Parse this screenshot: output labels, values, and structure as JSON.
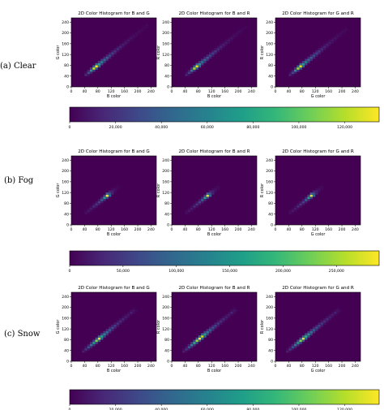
{
  "row_labels": [
    "(a) Clear",
    "(b) Fog",
    "(c) Snow"
  ],
  "colormap": [
    "#440154",
    "#482878",
    "#3e4989",
    "#31688e",
    "#26828e",
    "#1f9e89",
    "#35b779",
    "#6ece58",
    "#b5de2b",
    "#fde725"
  ],
  "background_color": "#440154",
  "chart_data": [
    {
      "type": "heatmap",
      "row": "(a) Clear",
      "title": "2D Color Histogram for B and G",
      "xlabel": "B color",
      "ylabel": "G color",
      "xlim": [
        0,
        256
      ],
      "ylim": [
        0,
        256
      ],
      "xticks": [
        0,
        40,
        80,
        120,
        160,
        200,
        240
      ],
      "yticks": [
        0,
        40,
        80,
        120,
        160,
        200,
        240
      ],
      "bin_size": 8,
      "diagonal_cells": [
        [
          40,
          0.12
        ],
        [
          48,
          0.25
        ],
        [
          56,
          0.55
        ],
        [
          64,
          0.9
        ],
        [
          72,
          1.0
        ],
        [
          80,
          0.55
        ],
        [
          88,
          0.45
        ],
        [
          96,
          0.35
        ],
        [
          104,
          0.3
        ],
        [
          112,
          0.22
        ],
        [
          120,
          0.18
        ],
        [
          128,
          0.14
        ],
        [
          136,
          0.12
        ],
        [
          144,
          0.1
        ],
        [
          152,
          0.08
        ],
        [
          160,
          0.07
        ],
        [
          168,
          0.06
        ],
        [
          176,
          0.05
        ],
        [
          184,
          0.04
        ],
        [
          192,
          0.03
        ],
        [
          200,
          0.03
        ],
        [
          208,
          0.02
        ],
        [
          216,
          0.02
        ],
        [
          224,
          0.02
        ]
      ]
    },
    {
      "type": "heatmap",
      "row": "(a) Clear",
      "title": "2D Color Histogram for B and R",
      "xlabel": "B color",
      "ylabel": "R color",
      "xlim": [
        0,
        256
      ],
      "ylim": [
        0,
        256
      ],
      "xticks": [
        0,
        40,
        80,
        120,
        160,
        200,
        240
      ],
      "yticks": [
        0,
        40,
        80,
        120,
        160,
        200,
        240
      ],
      "bin_size": 8,
      "diagonal_cells": [
        [
          40,
          0.1
        ],
        [
          48,
          0.2
        ],
        [
          56,
          0.45
        ],
        [
          64,
          0.85
        ],
        [
          72,
          0.95
        ],
        [
          80,
          0.5
        ],
        [
          88,
          0.4
        ],
        [
          96,
          0.32
        ],
        [
          104,
          0.28
        ],
        [
          112,
          0.22
        ],
        [
          120,
          0.18
        ],
        [
          128,
          0.15
        ],
        [
          136,
          0.12
        ],
        [
          144,
          0.1
        ],
        [
          152,
          0.08
        ],
        [
          160,
          0.07
        ],
        [
          168,
          0.06
        ],
        [
          176,
          0.05
        ],
        [
          184,
          0.04
        ],
        [
          192,
          0.03
        ],
        [
          200,
          0.03
        ],
        [
          208,
          0.02
        ],
        [
          216,
          0.02
        ]
      ]
    },
    {
      "type": "heatmap",
      "row": "(a) Clear",
      "title": "2D Color Histogram for G and R",
      "xlabel": "G color",
      "ylabel": "R color",
      "xlim": [
        0,
        256
      ],
      "ylim": [
        0,
        256
      ],
      "xticks": [
        0,
        40,
        80,
        120,
        160,
        200,
        240
      ],
      "yticks": [
        0,
        40,
        80,
        120,
        160,
        200,
        240
      ],
      "bin_size": 8,
      "diagonal_cells": [
        [
          40,
          0.1
        ],
        [
          48,
          0.22
        ],
        [
          56,
          0.5
        ],
        [
          64,
          0.85
        ],
        [
          72,
          0.95
        ],
        [
          80,
          0.55
        ],
        [
          88,
          0.45
        ],
        [
          96,
          0.35
        ],
        [
          104,
          0.3
        ],
        [
          112,
          0.25
        ],
        [
          120,
          0.2
        ],
        [
          128,
          0.16
        ],
        [
          136,
          0.12
        ],
        [
          144,
          0.1
        ],
        [
          152,
          0.08
        ],
        [
          160,
          0.07
        ],
        [
          168,
          0.06
        ],
        [
          176,
          0.05
        ],
        [
          184,
          0.04
        ],
        [
          192,
          0.03
        ],
        [
          200,
          0.03
        ],
        [
          208,
          0.02
        ]
      ]
    },
    {
      "type": "colorbar",
      "row": "(a) Clear",
      "range": [
        0,
        135000
      ],
      "ticks": [
        0,
        20000,
        40000,
        60000,
        80000,
        100000,
        120000
      ],
      "tick_labels": [
        "0",
        "20,000",
        "40,000",
        "60,000",
        "80,000",
        "100,000",
        "120,000"
      ]
    },
    {
      "type": "heatmap",
      "row": "(b) Fog",
      "title": "2D Color Histogram for B and G",
      "xlabel": "B color",
      "ylabel": "G color",
      "xlim": [
        0,
        256
      ],
      "ylim": [
        0,
        256
      ],
      "xticks": [
        0,
        40,
        80,
        120,
        160,
        200,
        240
      ],
      "yticks": [
        0,
        40,
        80,
        120,
        160,
        200,
        240
      ],
      "bin_size": 8,
      "diagonal_cells": [
        [
          40,
          0.04
        ],
        [
          48,
          0.06
        ],
        [
          56,
          0.08
        ],
        [
          64,
          0.12
        ],
        [
          72,
          0.15
        ],
        [
          80,
          0.2
        ],
        [
          88,
          0.3
        ],
        [
          96,
          0.55
        ],
        [
          104,
          1.0
        ],
        [
          112,
          0.25
        ],
        [
          120,
          0.08
        ],
        [
          128,
          0.04
        ],
        [
          136,
          0.02
        ]
      ]
    },
    {
      "type": "heatmap",
      "row": "(b) Fog",
      "title": "2D Color Histogram for B and R",
      "xlabel": "B color",
      "ylabel": "R color",
      "xlim": [
        0,
        256
      ],
      "ylim": [
        0,
        256
      ],
      "xticks": [
        0,
        40,
        80,
        120,
        160,
        200,
        240
      ],
      "yticks": [
        0,
        40,
        80,
        120,
        160,
        200,
        240
      ],
      "bin_size": 8,
      "diagonal_cells": [
        [
          40,
          0.04
        ],
        [
          48,
          0.06
        ],
        [
          56,
          0.08
        ],
        [
          64,
          0.12
        ],
        [
          72,
          0.15
        ],
        [
          80,
          0.2
        ],
        [
          88,
          0.3
        ],
        [
          96,
          0.55
        ],
        [
          104,
          0.95
        ],
        [
          112,
          0.25
        ],
        [
          120,
          0.08
        ],
        [
          128,
          0.04
        ],
        [
          136,
          0.02
        ]
      ]
    },
    {
      "type": "heatmap",
      "row": "(b) Fog",
      "title": "2D Color Histogram for G and R",
      "xlabel": "G color",
      "ylabel": "R color",
      "xlim": [
        0,
        256
      ],
      "ylim": [
        0,
        256
      ],
      "xticks": [
        0,
        40,
        80,
        120,
        160,
        200,
        240
      ],
      "yticks": [
        0,
        40,
        80,
        120,
        160,
        200,
        240
      ],
      "bin_size": 8,
      "diagonal_cells": [
        [
          40,
          0.04
        ],
        [
          48,
          0.06
        ],
        [
          56,
          0.08
        ],
        [
          64,
          0.12
        ],
        [
          72,
          0.15
        ],
        [
          80,
          0.2
        ],
        [
          88,
          0.3
        ],
        [
          96,
          0.55
        ],
        [
          104,
          0.95
        ],
        [
          112,
          0.25
        ],
        [
          120,
          0.08
        ],
        [
          128,
          0.04
        ],
        [
          136,
          0.02
        ]
      ]
    },
    {
      "type": "colorbar",
      "row": "(b) Fog",
      "range": [
        0,
        290000
      ],
      "ticks": [
        0,
        50000,
        100000,
        150000,
        200000,
        250000
      ],
      "tick_labels": [
        "0",
        "50,000",
        "100,000",
        "150,000",
        "200,000",
        "250,000"
      ]
    },
    {
      "type": "heatmap",
      "row": "(c) Snow",
      "title": "2D Color Histogram for B and G",
      "xlabel": "B color",
      "ylabel": "G color",
      "xlim": [
        0,
        256
      ],
      "ylim": [
        0,
        256
      ],
      "xticks": [
        0,
        40,
        80,
        120,
        160,
        200,
        240
      ],
      "yticks": [
        0,
        40,
        80,
        120,
        160,
        200,
        240
      ],
      "bin_size": 8,
      "diagonal_cells": [
        [
          32,
          0.08
        ],
        [
          40,
          0.15
        ],
        [
          48,
          0.25
        ],
        [
          56,
          0.4
        ],
        [
          64,
          0.55
        ],
        [
          72,
          0.8
        ],
        [
          80,
          0.95
        ],
        [
          88,
          0.6
        ],
        [
          96,
          0.45
        ],
        [
          104,
          0.35
        ],
        [
          112,
          0.28
        ],
        [
          120,
          0.22
        ],
        [
          128,
          0.18
        ],
        [
          136,
          0.14
        ],
        [
          144,
          0.12
        ],
        [
          152,
          0.1
        ],
        [
          160,
          0.08
        ],
        [
          168,
          0.06
        ],
        [
          176,
          0.08
        ],
        [
          184,
          0.05
        ]
      ]
    },
    {
      "type": "heatmap",
      "row": "(c) Snow",
      "title": "2D Color Histogram for B and R",
      "xlabel": "B color",
      "ylabel": "R color",
      "xlim": [
        0,
        256
      ],
      "ylim": [
        0,
        256
      ],
      "xticks": [
        0,
        40,
        80,
        120,
        160,
        200,
        240
      ],
      "yticks": [
        0,
        40,
        80,
        120,
        160,
        200,
        240
      ],
      "bin_size": 8,
      "diagonal_cells": [
        [
          32,
          0.08
        ],
        [
          40,
          0.15
        ],
        [
          48,
          0.28
        ],
        [
          56,
          0.45
        ],
        [
          64,
          0.6
        ],
        [
          72,
          0.85
        ],
        [
          80,
          1.0
        ],
        [
          88,
          0.9
        ],
        [
          96,
          0.55
        ],
        [
          104,
          0.4
        ],
        [
          112,
          0.3
        ],
        [
          120,
          0.24
        ],
        [
          128,
          0.2
        ],
        [
          136,
          0.16
        ],
        [
          144,
          0.13
        ],
        [
          152,
          0.11
        ],
        [
          160,
          0.09
        ],
        [
          168,
          0.07
        ],
        [
          176,
          0.1
        ],
        [
          184,
          0.06
        ]
      ]
    },
    {
      "type": "heatmap",
      "row": "(c) Snow",
      "title": "2D Color Histogram for G and R",
      "xlabel": "G color",
      "ylabel": "R color",
      "xlim": [
        0,
        256
      ],
      "ylim": [
        0,
        256
      ],
      "xticks": [
        0,
        40,
        80,
        120,
        160,
        200,
        240
      ],
      "yticks": [
        0,
        40,
        80,
        120,
        160,
        200,
        240
      ],
      "bin_size": 8,
      "diagonal_cells": [
        [
          32,
          0.08
        ],
        [
          40,
          0.15
        ],
        [
          48,
          0.25
        ],
        [
          56,
          0.4
        ],
        [
          64,
          0.55
        ],
        [
          72,
          0.8
        ],
        [
          80,
          0.95
        ],
        [
          88,
          0.65
        ],
        [
          96,
          0.5
        ],
        [
          104,
          0.38
        ],
        [
          112,
          0.3
        ],
        [
          120,
          0.24
        ],
        [
          128,
          0.2
        ],
        [
          136,
          0.16
        ],
        [
          144,
          0.13
        ],
        [
          152,
          0.11
        ],
        [
          160,
          0.09
        ],
        [
          168,
          0.07
        ],
        [
          176,
          0.08
        ],
        [
          184,
          0.05
        ]
      ]
    },
    {
      "type": "colorbar",
      "row": "(c) Snow",
      "range": [
        0,
        135000
      ],
      "ticks": [
        0,
        20000,
        40000,
        60000,
        80000,
        100000,
        120000
      ],
      "tick_labels": [
        "0",
        "20,000",
        "40,000",
        "60,000",
        "80,000",
        "100,000",
        "120,000"
      ]
    }
  ]
}
